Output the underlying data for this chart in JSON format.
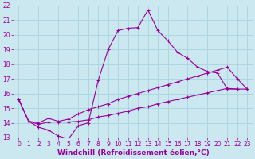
{
  "background_color": "#cbe8f0",
  "grid_color": "#a8d4de",
  "line_color": "#990099",
  "xlim": [
    -0.5,
    23.5
  ],
  "ylim": [
    13,
    22
  ],
  "xlabel": "Windchill (Refroidissement éolien,°C)",
  "xlabel_fontsize": 6.5,
  "tick_fontsize": 5.5,
  "xticks": [
    0,
    1,
    2,
    3,
    4,
    5,
    6,
    7,
    8,
    9,
    10,
    11,
    12,
    13,
    14,
    15,
    16,
    17,
    18,
    19,
    20,
    21,
    22,
    23
  ],
  "yticks": [
    13,
    14,
    15,
    16,
    17,
    18,
    19,
    20,
    21,
    22
  ],
  "line1_x": [
    0,
    1,
    2,
    3,
    4,
    5,
    6,
    7,
    8,
    9,
    10,
    11,
    12,
    13,
    14,
    15,
    16,
    17,
    18,
    19,
    20,
    21,
    22
  ],
  "line1_y": [
    15.6,
    14.1,
    13.7,
    13.5,
    13.1,
    12.9,
    13.8,
    14.0,
    16.9,
    19.0,
    20.3,
    20.45,
    20.5,
    21.7,
    20.3,
    19.6,
    18.8,
    18.4,
    17.8,
    17.5,
    17.4,
    16.3,
    16.3
  ],
  "line2_x": [
    0,
    1,
    2,
    3,
    4,
    5,
    6,
    7,
    8,
    9,
    10,
    11,
    12,
    13,
    14,
    15,
    16,
    17,
    18,
    19,
    20,
    21,
    22,
    23
  ],
  "line2_y": [
    15.6,
    14.1,
    14.0,
    14.3,
    14.1,
    14.25,
    14.6,
    14.9,
    15.1,
    15.3,
    15.6,
    15.8,
    16.0,
    16.2,
    16.4,
    16.6,
    16.8,
    17.0,
    17.2,
    17.4,
    17.6,
    17.8,
    17.0,
    16.3
  ],
  "line3_x": [
    0,
    1,
    2,
    3,
    4,
    5,
    6,
    7,
    8,
    9,
    10,
    11,
    12,
    13,
    14,
    15,
    16,
    17,
    18,
    19,
    20,
    21,
    22,
    23
  ],
  "line3_y": [
    15.6,
    14.1,
    13.9,
    14.05,
    14.05,
    14.05,
    14.1,
    14.2,
    14.4,
    14.5,
    14.65,
    14.8,
    15.0,
    15.1,
    15.3,
    15.45,
    15.6,
    15.75,
    15.9,
    16.05,
    16.2,
    16.35,
    16.3,
    16.3
  ]
}
